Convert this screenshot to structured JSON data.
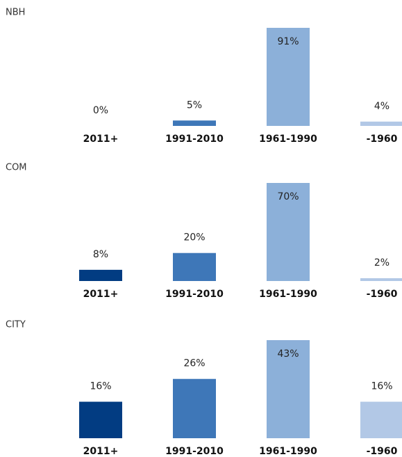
{
  "chart_data": [
    {
      "type": "bar",
      "title": "NBH",
      "categories": [
        "2011+",
        "1991-2010",
        "1961-1990",
        "-1960"
      ],
      "values": [
        0,
        5,
        91,
        4
      ],
      "value_labels": [
        "0%",
        "5%",
        "91%",
        "4%"
      ],
      "colors": [
        "#023c82",
        "#3e77b8",
        "#8cb0d9",
        "#b2c8e6"
      ],
      "ylim": [
        0,
        91
      ]
    },
    {
      "type": "bar",
      "title": "COM",
      "categories": [
        "2011+",
        "1991-2010",
        "1961-1990",
        "-1960"
      ],
      "values": [
        8,
        20,
        70,
        2
      ],
      "value_labels": [
        "8%",
        "20%",
        "70%",
        "2%"
      ],
      "colors": [
        "#023c82",
        "#3e77b8",
        "#8cb0d9",
        "#b2c8e6"
      ],
      "ylim": [
        0,
        70
      ]
    },
    {
      "type": "bar",
      "title": "CITY",
      "categories": [
        "2011+",
        "1991-2010",
        "1961-1990",
        "-1960"
      ],
      "values": [
        16,
        26,
        43,
        16
      ],
      "value_labels": [
        "16%",
        "26%",
        "43%",
        "16%"
      ],
      "colors": [
        "#023c82",
        "#3e77b8",
        "#8cb0d9",
        "#b2c8e6"
      ],
      "ylim": [
        0,
        43
      ]
    }
  ]
}
